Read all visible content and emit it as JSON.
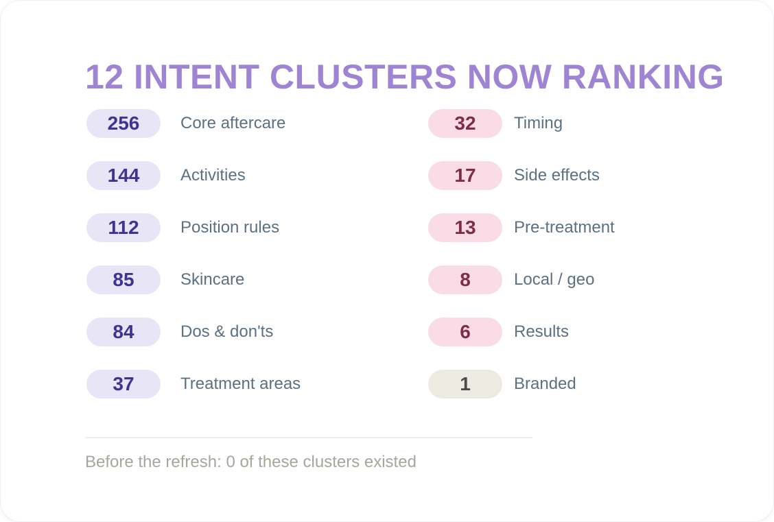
{
  "title": "12 INTENT CLUSTERS NOW RANKING",
  "footer": "Before the refresh: 0 of these clusters existed",
  "clusters": {
    "left": [
      {
        "value": "256",
        "label": "Core aftercare",
        "variant": "purple"
      },
      {
        "value": "144",
        "label": "Activities",
        "variant": "purple"
      },
      {
        "value": "112",
        "label": "Position rules",
        "variant": "purple"
      },
      {
        "value": "85",
        "label": "Skincare",
        "variant": "purple"
      },
      {
        "value": "84",
        "label": "Dos & don'ts",
        "variant": "purple"
      },
      {
        "value": "37",
        "label": "Treatment areas",
        "variant": "purple"
      }
    ],
    "right": [
      {
        "value": "32",
        "label": "Timing",
        "variant": "pink"
      },
      {
        "value": "17",
        "label": "Side effects",
        "variant": "pink"
      },
      {
        "value": "13",
        "label": "Pre-treatment",
        "variant": "pink"
      },
      {
        "value": "8",
        "label": "Local / geo",
        "variant": "pink"
      },
      {
        "value": "6",
        "label": "Results",
        "variant": "pink"
      },
      {
        "value": "1",
        "label": "Branded",
        "variant": "neutral"
      }
    ]
  },
  "colors": {
    "title": "#9e84d2",
    "label": "#5b7082",
    "footer": "#a9a59c",
    "pill_purple_bg": "#e8e5f7",
    "pill_purple_text": "#3f3392",
    "pill_pink_bg": "#f9dce6",
    "pill_pink_text": "#7d2d49",
    "pill_neutral_bg": "#edeae2",
    "pill_neutral_text": "#4b4b4b",
    "divider": "#eeedf5",
    "card_bg": "#ffffff"
  },
  "chart_data": {
    "type": "table",
    "title": "12 INTENT CLUSTERS NOW RANKING",
    "categories": [
      "Core aftercare",
      "Activities",
      "Position rules",
      "Skincare",
      "Dos & don'ts",
      "Treatment areas",
      "Timing",
      "Side effects",
      "Pre-treatment",
      "Local / geo",
      "Results",
      "Branded"
    ],
    "values": [
      256,
      144,
      112,
      85,
      84,
      37,
      32,
      17,
      13,
      8,
      6,
      1
    ],
    "annotation": "Before the refresh: 0 of these clusters existed",
    "legend_position": "none",
    "grid": false,
    "layout": "two-column pill list, descending counts"
  }
}
